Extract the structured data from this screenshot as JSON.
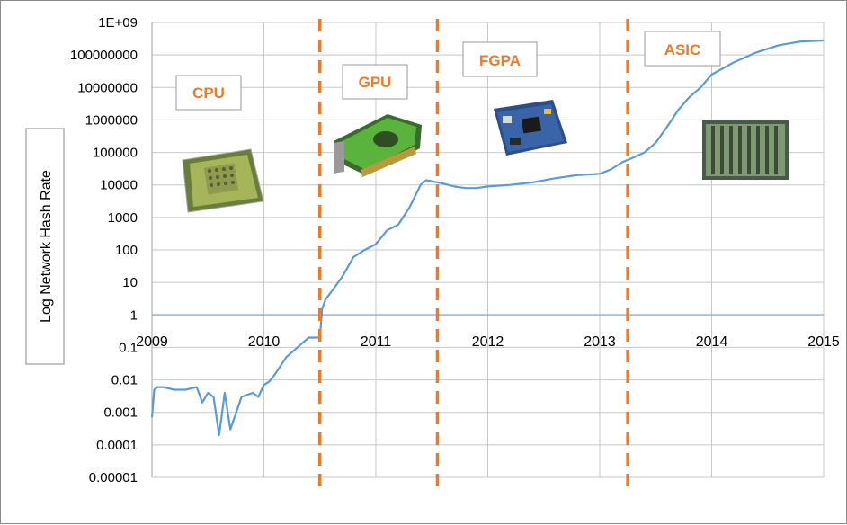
{
  "chart_data": {
    "type": "line",
    "title": "",
    "ylabel": "Log Network Hash Rate",
    "xlabel": "",
    "yscale": "log",
    "ylim": [
      1e-05,
      1000000000
    ],
    "xlim": [
      2009,
      2015
    ],
    "y_tick_labels": [
      "1E+09",
      "100000000",
      "10000000",
      "1000000",
      "100000",
      "10000",
      "1000",
      "100",
      "10",
      "1",
      "0.1",
      "0.01",
      "0.001",
      "0.0001",
      "0.00001"
    ],
    "x_tick_labels": [
      "2009",
      "2010",
      "2011",
      "2012",
      "2013",
      "2014",
      "2015"
    ],
    "grid": true,
    "line_color": "#5B9BD5",
    "divider_color": "#E87B2C",
    "eras": [
      {
        "label": "CPU",
        "start": 2009.0,
        "end": 2010.5
      },
      {
        "label": "GPU",
        "start": 2010.5,
        "end": 2011.55
      },
      {
        "label": "FGPA",
        "start": 2011.55,
        "end": 2013.25
      },
      {
        "label": "ASIC",
        "start": 2013.25,
        "end": 2015.0
      }
    ],
    "era_dividers": [
      2010.5,
      2011.55,
      2013.25
    ],
    "series": [
      {
        "x": [
          2009.0,
          2009.02,
          2009.05,
          2009.1,
          2009.2,
          2009.3,
          2009.4,
          2009.45,
          2009.5,
          2009.55,
          2009.6,
          2009.65,
          2009.7,
          2009.8,
          2009.9,
          2009.95,
          2010.0,
          2010.05,
          2010.1,
          2010.2,
          2010.3,
          2010.4,
          2010.5,
          2010.52,
          2010.55,
          2010.6,
          2010.7,
          2010.8,
          2010.9,
          2011.0,
          2011.1,
          2011.2,
          2011.3,
          2011.4,
          2011.45,
          2011.5,
          2011.55,
          2011.6,
          2011.7,
          2011.8,
          2011.9,
          2012.0,
          2012.2,
          2012.4,
          2012.6,
          2012.8,
          2013.0,
          2013.1,
          2013.2,
          2013.3,
          2013.4,
          2013.5,
          2013.6,
          2013.7,
          2013.8,
          2013.9,
          2014.0,
          2014.2,
          2014.4,
          2014.6,
          2014.8,
          2015.0
        ],
        "y": [
          0.0007,
          0.005,
          0.006,
          0.006,
          0.005,
          0.005,
          0.006,
          0.002,
          0.004,
          0.003,
          0.0002,
          0.004,
          0.0003,
          0.003,
          0.004,
          0.003,
          0.007,
          0.009,
          0.015,
          0.05,
          0.1,
          0.2,
          0.2,
          1.5,
          3,
          5,
          15,
          60,
          100,
          150,
          400,
          600,
          2000,
          10000,
          14000,
          13000,
          12000,
          11000,
          9000,
          8000,
          8000,
          9000,
          10000,
          12000,
          16000,
          20000,
          22000,
          30000,
          50000,
          70000,
          100000,
          200000,
          600000,
          2000000,
          5000000,
          10000000,
          25000000,
          60000000,
          120000000,
          200000000,
          260000000,
          280000000
        ]
      }
    ]
  }
}
